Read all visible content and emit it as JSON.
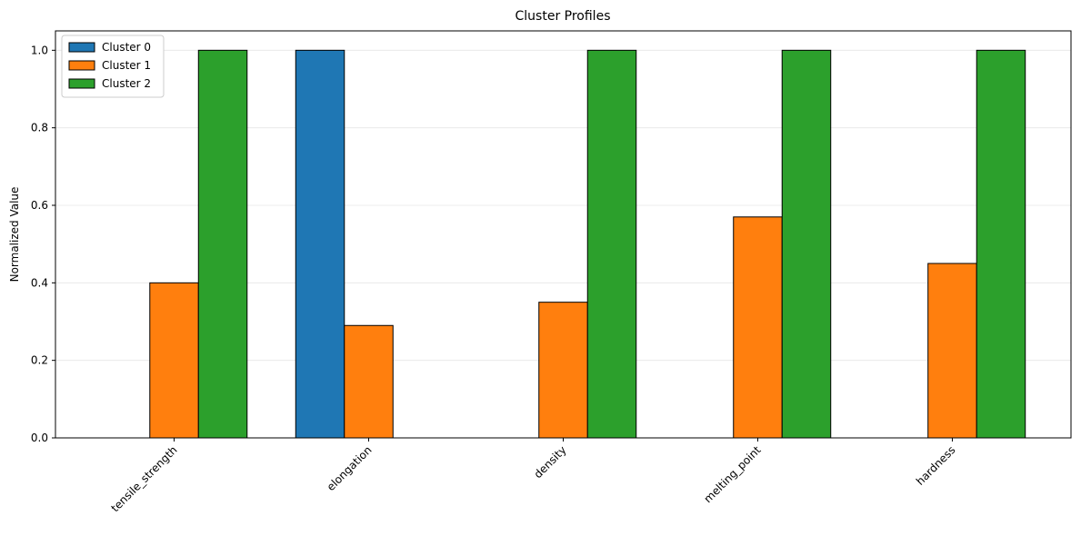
{
  "chart_data": {
    "type": "bar",
    "title": "Cluster Profiles",
    "y_label": "Normalized Value",
    "categories": [
      "tensile_strength",
      "elongation",
      "density",
      "melting_point",
      "hardness"
    ],
    "series": [
      {
        "name": "Cluster 0",
        "color": "#1f77b4",
        "values": [
          0,
          1.0,
          0,
          0,
          0
        ]
      },
      {
        "name": "Cluster 1",
        "color": "#ff7f0e",
        "values": [
          0.4,
          0.29,
          0.35,
          0.57,
          0.45
        ]
      },
      {
        "name": "Cluster 2",
        "color": "#2ca02c",
        "values": [
          1.0,
          0,
          1.0,
          1.0,
          1.0
        ]
      }
    ],
    "ylim": [
      0,
      1.05
    ],
    "yticks": [
      {
        "value": 0,
        "label": "0.0"
      },
      {
        "value": 0.2,
        "label": "0.2"
      },
      {
        "value": 0.4,
        "label": "0.4"
      },
      {
        "value": 0.6,
        "label": "0.6"
      },
      {
        "value": 0.8,
        "label": "0.8"
      },
      {
        "value": 1.0,
        "label": "1.0"
      }
    ],
    "grid": true,
    "legend": "upper-left"
  }
}
